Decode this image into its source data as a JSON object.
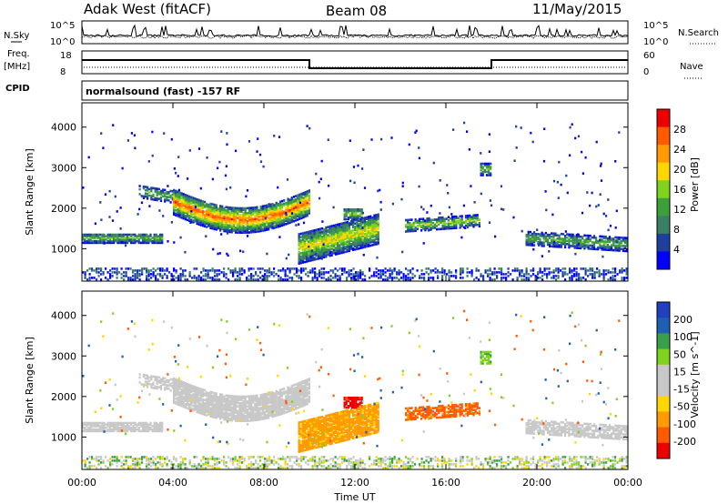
{
  "header": {
    "station": "Adak West (fitACF)",
    "beam": "Beam 08",
    "date": "11/May/2015"
  },
  "strips": {
    "nsky_label": "N.Sky",
    "nsky_ticks": [
      "10^5",
      "10^0"
    ],
    "nsearch_label": "N.Search",
    "nsearch_ticks": [
      "10^5",
      "10^0"
    ],
    "freq_label": "Freq.",
    "freq_unit": "[MHz]",
    "freq_ticks": [
      "18",
      "8"
    ],
    "nave_label": "Nave",
    "nave_ticks": [
      "60",
      "0"
    ],
    "cpid_label": "CPID",
    "cpid_text": "normalsound (fast) -157 RF"
  },
  "colors": {
    "power_scale": [
      "#0000ff",
      "#1e3f9e",
      "#3a7f66",
      "#3ca03a",
      "#7fd21e",
      "#ffd700",
      "#ff9a00",
      "#ff5a00",
      "#ee0000"
    ],
    "velocity_scale": [
      "#ee0000",
      "#ff5a00",
      "#ff9a00",
      "#ffd700",
      "#c8c8c8",
      "#c8c8c8",
      "#7fd21e",
      "#3a9f4a",
      "#1e5fb4",
      "#2040c0"
    ]
  },
  "chart_data": [
    {
      "type": "heatmap",
      "name": "power-panel",
      "ylabel": "Slant Range [km]",
      "ylim": [
        200,
        4600
      ],
      "yticks": [
        "1000",
        "2000",
        "3000",
        "4000"
      ],
      "x": [
        "00:00",
        "04:00",
        "08:00",
        "12:00",
        "16:00",
        "20:00",
        "00:00"
      ],
      "colorbar_label": "Power [dB]",
      "colorbar_ticks": [
        "4",
        "8",
        "12",
        "16",
        "20",
        "24",
        "28"
      ],
      "colorbar_range": [
        0,
        32
      ]
    },
    {
      "type": "heatmap",
      "name": "velocity-panel",
      "ylabel": "Slant Range [km]",
      "ylim": [
        200,
        4600
      ],
      "yticks": [
        "1000",
        "2000",
        "3000",
        "4000"
      ],
      "x": [
        "00:00",
        "04:00",
        "08:00",
        "12:00",
        "16:00",
        "20:00",
        "00:00"
      ],
      "xlabel": "Time UT",
      "colorbar_label": "Velocity [m s^-1]",
      "colorbar_ticks": [
        "-200",
        "-100",
        "-50",
        "-15",
        "15",
        "50",
        "100",
        "200"
      ]
    }
  ]
}
